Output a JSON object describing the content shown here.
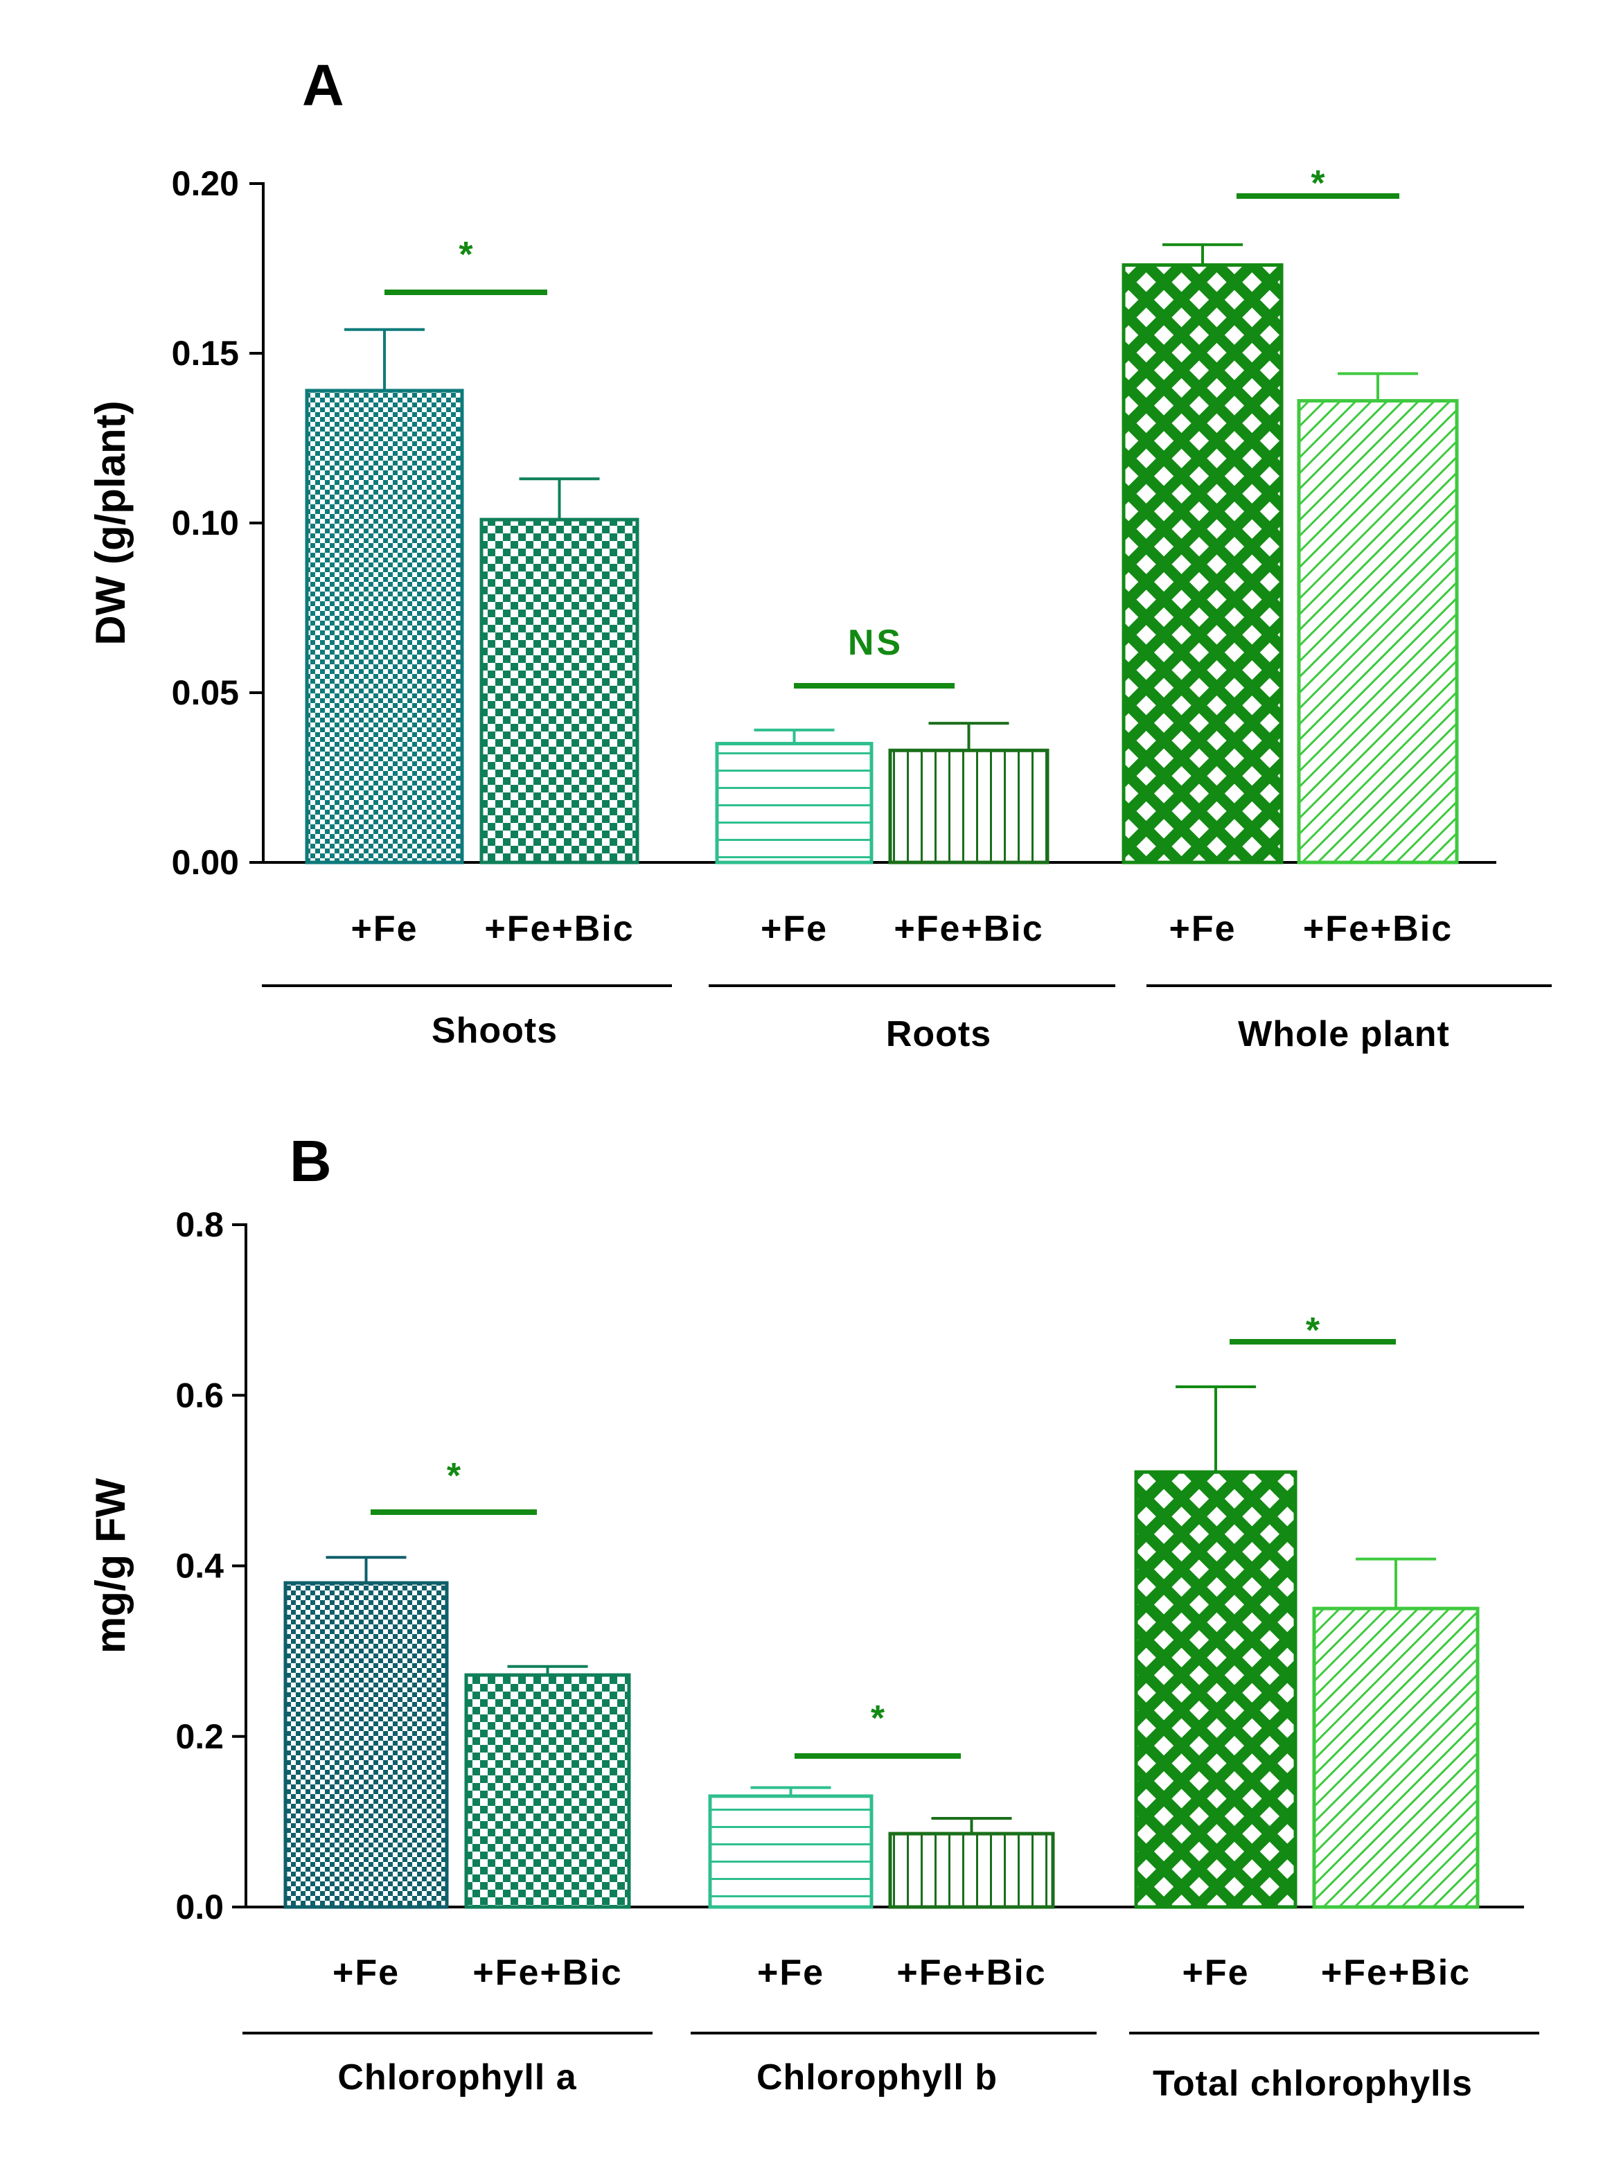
{
  "colors": {
    "teal_dark": "#0f5f6a",
    "teal": "#0f7a7a",
    "teal_green": "#0f7f5a",
    "aqua_green": "#2fbf8f",
    "green_dark": "#1a6f1a",
    "green": "#138a13",
    "green_light": "#3fc93f",
    "sig": "#138a13"
  },
  "chart_data": [
    {
      "panel": "A",
      "type": "bar",
      "title": "",
      "ylabel": "DW (g/plant)",
      "xlabel": "",
      "ylim": [
        0,
        0.2
      ],
      "yticks": [
        "0.00",
        "0.05",
        "0.10",
        "0.15",
        "0.20"
      ],
      "groups": [
        {
          "label": "Shoots",
          "bars": [
            {
              "category": "+Fe",
              "value": 0.139,
              "error": 0.018,
              "pattern": "checker-fine",
              "color_key": "teal"
            },
            {
              "category": "+Fe+Bic",
              "value": 0.101,
              "error": 0.012,
              "pattern": "checker-coarse",
              "color_key": "teal_green"
            }
          ],
          "significance": "*"
        },
        {
          "label": "Roots",
          "bars": [
            {
              "category": "+Fe",
              "value": 0.035,
              "error": 0.004,
              "pattern": "hlines",
              "color_key": "aqua_green"
            },
            {
              "category": "+Fe+Bic",
              "value": 0.033,
              "error": 0.008,
              "pattern": "vlines",
              "color_key": "green_dark"
            }
          ],
          "significance": "NS"
        },
        {
          "label": "Whole plant",
          "bars": [
            {
              "category": "+Fe",
              "value": 0.176,
              "error": 0.006,
              "pattern": "crosshatch",
              "color_key": "green"
            },
            {
              "category": "+Fe+Bic",
              "value": 0.136,
              "error": 0.008,
              "pattern": "diagonal",
              "color_key": "green_light"
            }
          ],
          "significance": "*"
        }
      ]
    },
    {
      "panel": "B",
      "type": "bar",
      "title": "",
      "ylabel": "mg/g FW",
      "xlabel": "",
      "ylim": [
        0,
        0.8
      ],
      "yticks": [
        "0.0",
        "0.2",
        "0.4",
        "0.6",
        "0.8"
      ],
      "groups": [
        {
          "label": "Chlorophyll a",
          "bars": [
            {
              "category": "+Fe",
              "value": 0.38,
              "error": 0.03,
              "pattern": "checker-fine",
              "color_key": "teal_dark"
            },
            {
              "category": "+Fe+Bic",
              "value": 0.272,
              "error": 0.01,
              "pattern": "checker-coarse",
              "color_key": "teal_green"
            }
          ],
          "significance": "*"
        },
        {
          "label": "Chlorophyll b",
          "bars": [
            {
              "category": "+Fe",
              "value": 0.13,
              "error": 0.01,
              "pattern": "hlines",
              "color_key": "aqua_green"
            },
            {
              "category": "+Fe+Bic",
              "value": 0.086,
              "error": 0.018,
              "pattern": "vlines",
              "color_key": "green_dark"
            }
          ],
          "significance": "*"
        },
        {
          "label": "Total chlorophylls",
          "bars": [
            {
              "category": "+Fe",
              "value": 0.51,
              "error": 0.1,
              "pattern": "crosshatch",
              "color_key": "green"
            },
            {
              "category": "+Fe+Bic",
              "value": 0.35,
              "error": 0.058,
              "pattern": "diagonal",
              "color_key": "green_light"
            }
          ],
          "significance": "*"
        }
      ]
    }
  ]
}
